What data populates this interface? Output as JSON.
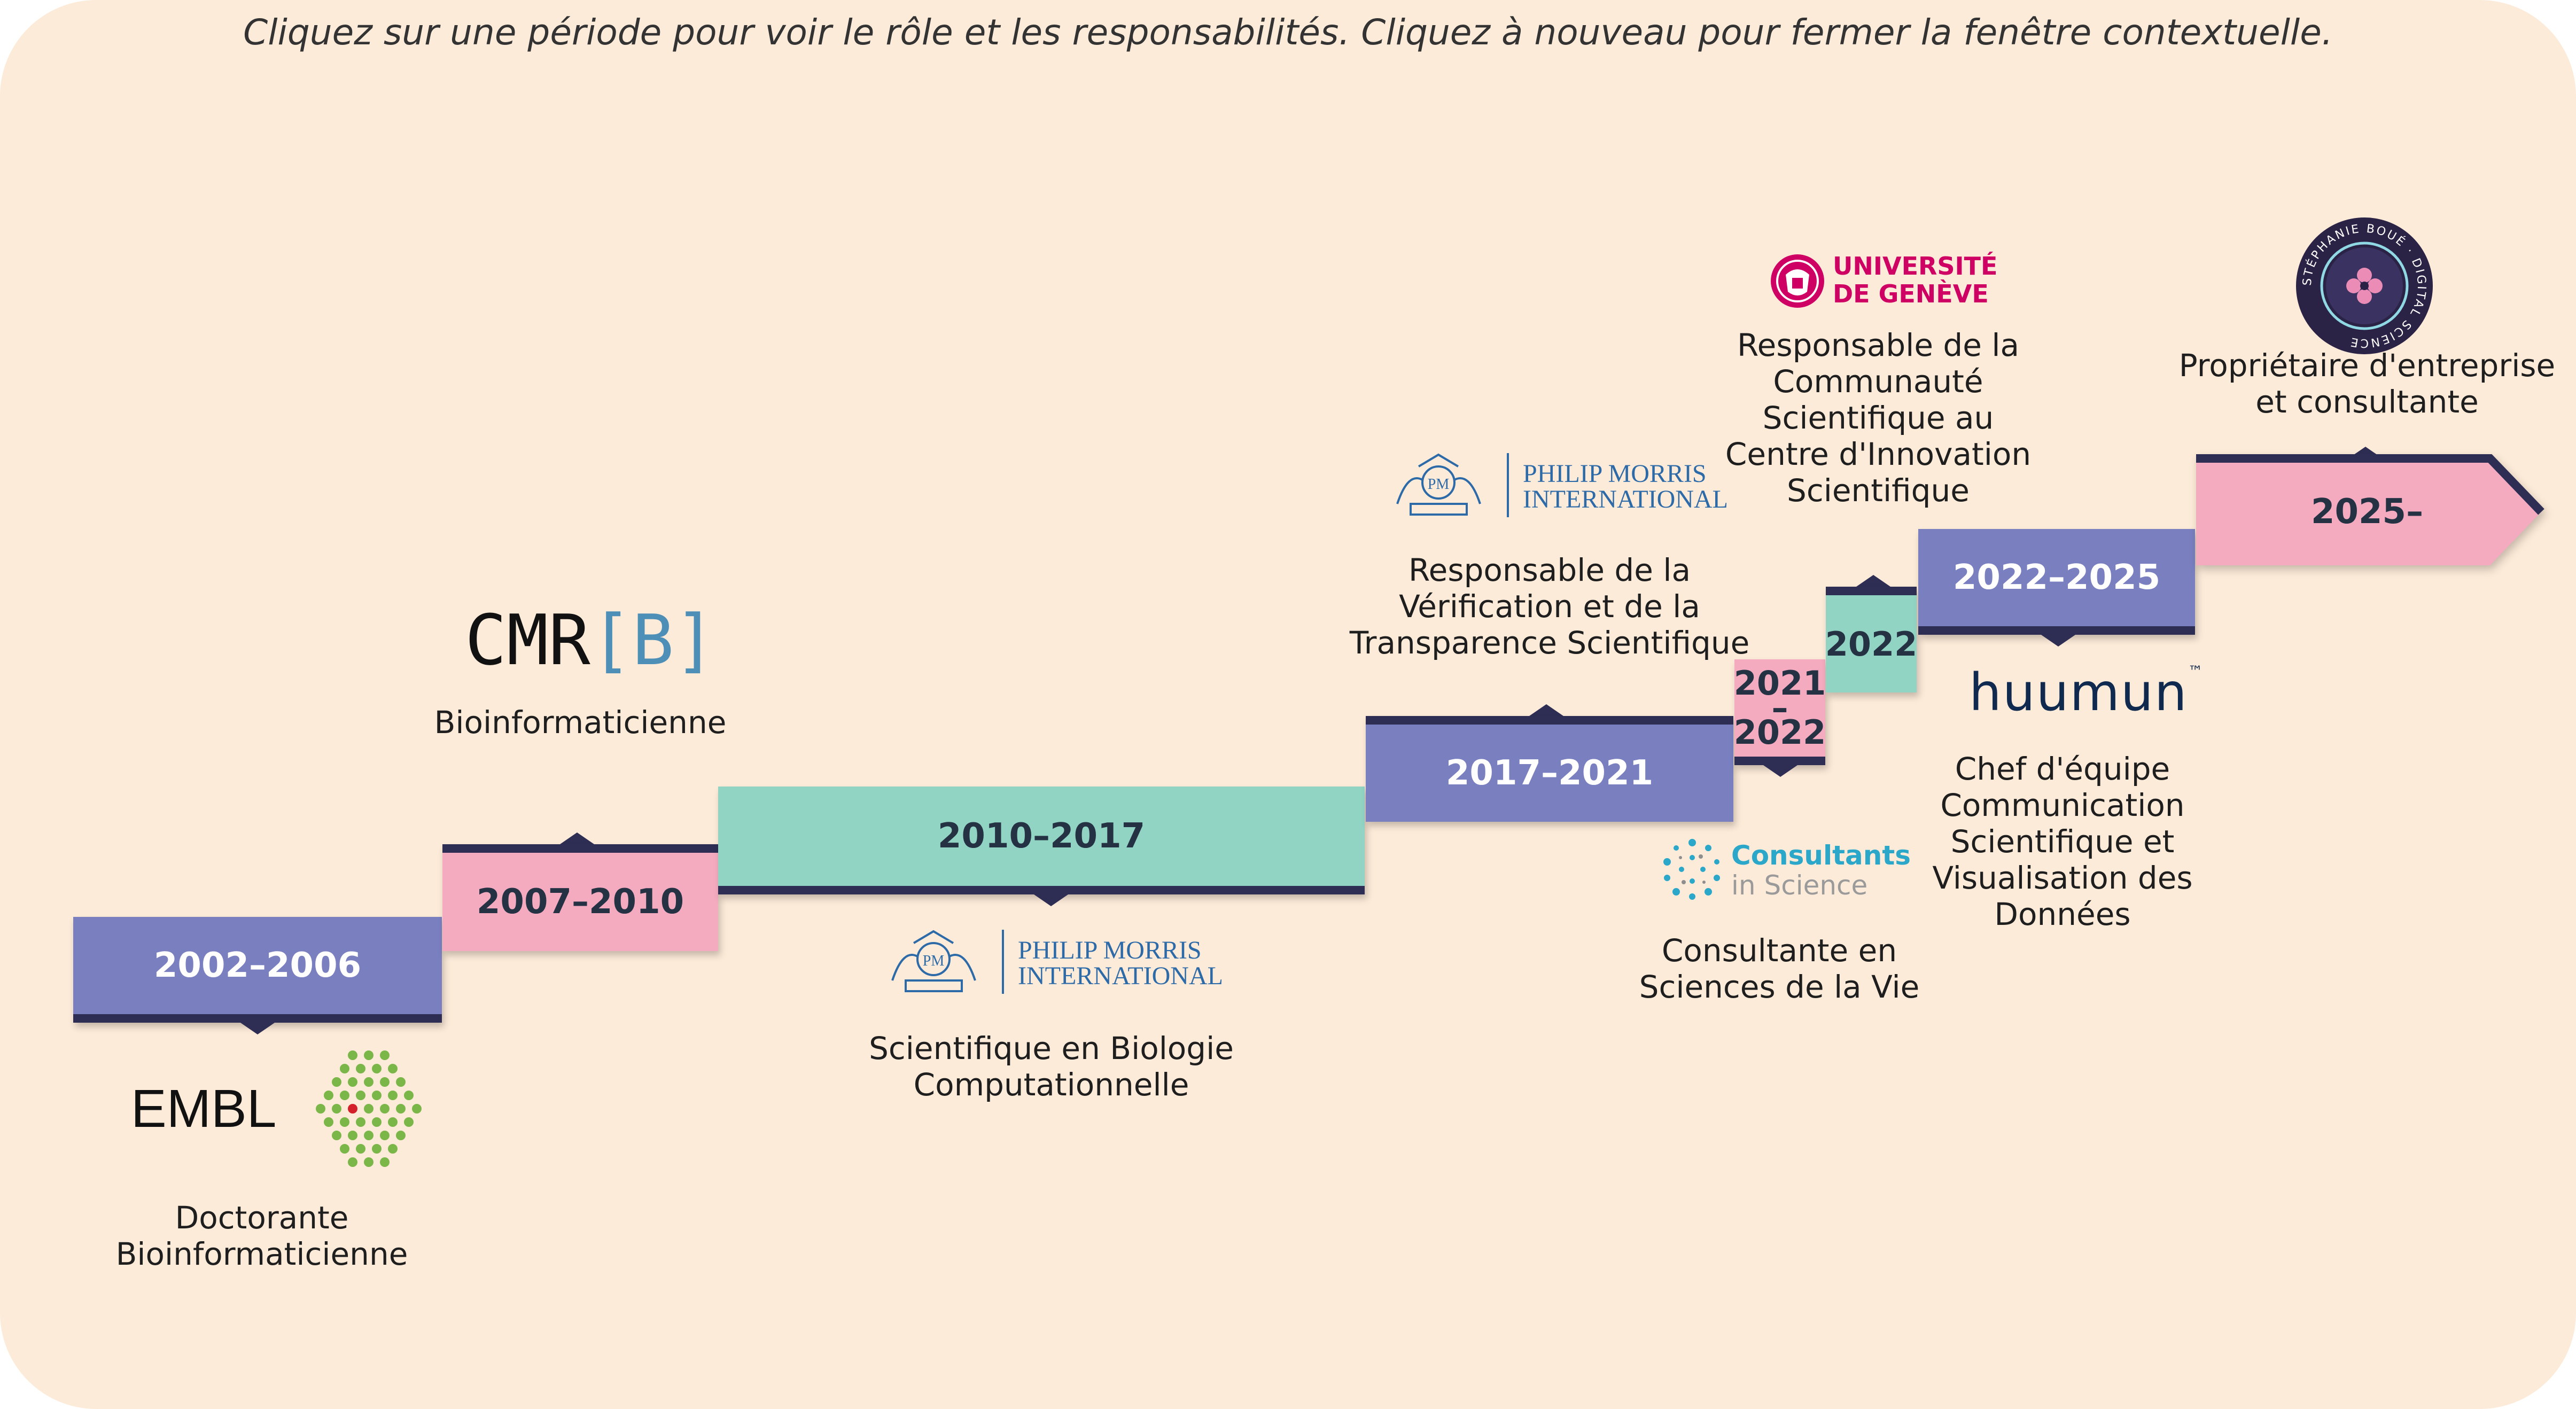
{
  "instructions": "Cliquez sur une période pour voir le rôle et les responsabilités. Cliquez à nouveau pour fermer la fenêtre contextuelle.",
  "colors": {
    "background": "#fdebd9",
    "purple": "#7a7fc0",
    "pink": "#f4abc0",
    "teal": "#92d4c4",
    "border": "#2e2e54"
  },
  "periods": [
    {
      "label": "2002–2006",
      "role": "Doctorante\nBioinformaticienne",
      "logo": "EMBL"
    },
    {
      "label": "2007–2010",
      "role": "Bioinformaticienne",
      "logo": "CMR[B]",
      "logo_main": "CMR",
      "logo_bracket": "[B]"
    },
    {
      "label": "2010–2017",
      "role": "Scientifique en Biologie\nComputationnelle",
      "logo": "PHILIP MORRIS INTERNATIONAL",
      "logo_line1": "PHILIP MORRIS",
      "logo_line2": "INTERNATIONAL"
    },
    {
      "label": "2017–2021",
      "role": "Responsable de la\nVérification et de la\nTransparence Scientifique",
      "logo": "PHILIP MORRIS INTERNATIONAL",
      "logo_line1": "PHILIP MORRIS",
      "logo_line2": "INTERNATIONAL"
    },
    {
      "label_line1": "2021",
      "label_line2": "–",
      "label_line3": "2022",
      "role": "Consultante en\nSciences de la Vie",
      "logo_line1": "Consultants",
      "logo_line2": "in Science"
    },
    {
      "label": "2022",
      "role": "Responsable de la\nCommunauté\nScientifique au\nCentre d'Innovation\nScientifique",
      "logo_line1": "UNIVERSITÉ",
      "logo_line2": "DE GENÈVE"
    },
    {
      "label": "2022–2025",
      "role": "Chef d'équipe\nCommunication\nScientifique et\nVisualisation des\nDonnées",
      "logo": "huumun",
      "logo_tm": "™"
    },
    {
      "label": "2025–",
      "role": "Propriétaire d'entreprise\net consultante",
      "logo_ring": "STÉPHANIE BOUÉ · DIGITAL SCIENCE"
    }
  ]
}
